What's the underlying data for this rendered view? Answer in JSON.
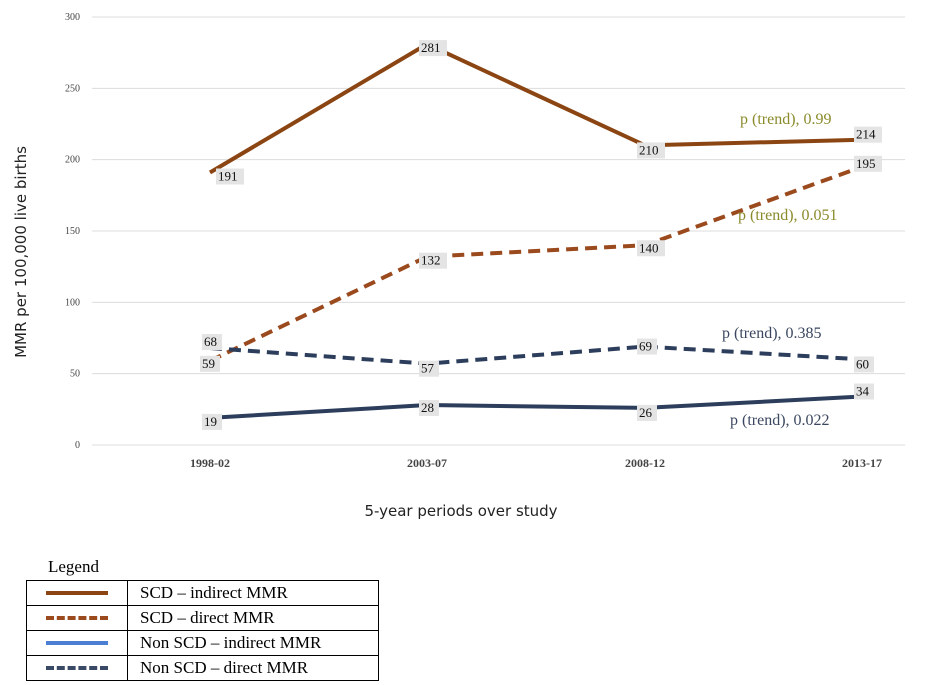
{
  "chart_data": {
    "type": "line",
    "title": "",
    "xlabel": "5-year periods over study",
    "ylabel": "MMR per 100,000 live births",
    "categories": [
      "1998-02",
      "2003-07",
      "2008-12",
      "2013-17"
    ],
    "ylim": [
      0,
      300
    ],
    "yticks": [
      0,
      50,
      100,
      150,
      200,
      250,
      300
    ],
    "grid": true,
    "series": [
      {
        "name": "SCD – indirect MMR",
        "values": [
          191,
          281,
          210,
          214
        ],
        "color": "#8B4513",
        "dash": "solid",
        "trend": "p (trend), 0.99",
        "trend_color": "#8a8a2a"
      },
      {
        "name": "SCD – direct MMR",
        "values": [
          59,
          132,
          140,
          195
        ],
        "color": "#9B4A1E",
        "dash": "dashed",
        "trend": "p (trend), 0.051",
        "trend_color": "#8a8a2a"
      },
      {
        "name": "Non SCD – indirect MMR",
        "values": [
          19,
          28,
          26,
          34
        ],
        "color": "#2c3e5c",
        "dash": "solid",
        "trend": "p (trend), 0.022",
        "trend_color": "#3b4760"
      },
      {
        "name": "Non SCD – direct MMR",
        "values": [
          68,
          57,
          69,
          60
        ],
        "color": "#2c3e5c",
        "dash": "dashed",
        "trend": "p (trend), 0.385",
        "trend_color": "#3b4760"
      }
    ]
  },
  "legend": {
    "title": "Legend",
    "items": [
      {
        "label": "SCD – indirect MMR",
        "color": "#8B4513",
        "dash": "solid"
      },
      {
        "label": "SCD – direct MMR",
        "color": "#9B4A1E",
        "dash": "dashed"
      },
      {
        "label": "Non SCD – indirect MMR",
        "color": "#4a7fd4",
        "dash": "solid"
      },
      {
        "label": "Non SCD – direct MMR",
        "color": "#3a4a66",
        "dash": "dashed"
      }
    ]
  }
}
